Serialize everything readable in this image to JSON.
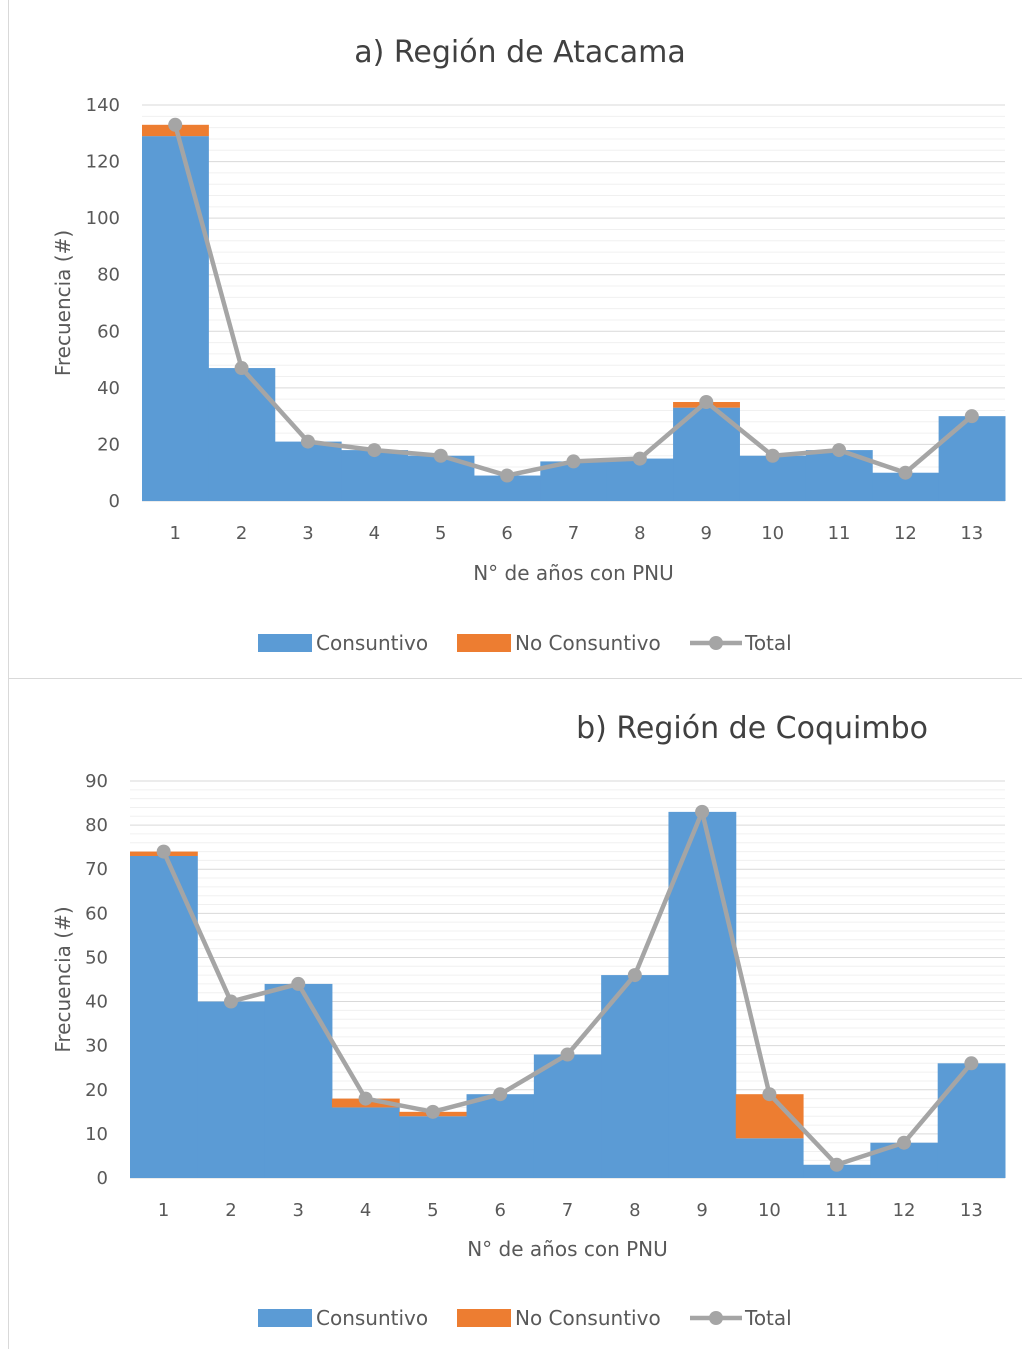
{
  "chart_data": [
    {
      "type": "bar",
      "stacked": true,
      "title": "a) Región de Atacama",
      "xlabel": "N° de años con PNU",
      "ylabel": "Frecuencia (#)",
      "ylim": [
        0,
        140
      ],
      "yticks": [
        0,
        20,
        40,
        60,
        80,
        100,
        120,
        140
      ],
      "categories": [
        "1",
        "2",
        "3",
        "4",
        "5",
        "6",
        "7",
        "8",
        "9",
        "10",
        "11",
        "12",
        "13"
      ],
      "series": [
        {
          "name": "Consuntivo",
          "color": "#5B9BD5",
          "values": [
            129,
            47,
            21,
            18,
            16,
            9,
            14,
            15,
            33,
            16,
            18,
            10,
            30
          ]
        },
        {
          "name": "No Consuntivo",
          "color": "#ED7D31",
          "values": [
            4,
            0,
            0,
            0,
            0,
            0,
            0,
            0,
            2,
            0,
            0,
            0,
            0
          ]
        },
        {
          "name": "Total",
          "type": "line",
          "color": "#A5A5A5",
          "values": [
            133,
            47,
            21,
            18,
            16,
            9,
            14,
            15,
            35,
            16,
            18,
            10,
            30
          ]
        }
      ],
      "grid": true,
      "legend": "bottom"
    },
    {
      "type": "bar",
      "stacked": true,
      "title": "b) Región de Coquimbo",
      "xlabel": "N° de años con PNU",
      "ylabel": "Frecuencia (#)",
      "ylim": [
        0,
        90
      ],
      "yticks": [
        0,
        10,
        20,
        30,
        40,
        50,
        60,
        70,
        80,
        90
      ],
      "categories": [
        "1",
        "2",
        "3",
        "4",
        "5",
        "6",
        "7",
        "8",
        "9",
        "10",
        "11",
        "12",
        "13"
      ],
      "series": [
        {
          "name": "Consuntivo",
          "color": "#5B9BD5",
          "values": [
            73,
            40,
            44,
            16,
            14,
            19,
            28,
            46,
            83,
            9,
            3,
            8,
            26
          ]
        },
        {
          "name": "No Consuntivo",
          "color": "#ED7D31",
          "values": [
            1,
            0,
            0,
            2,
            1,
            0,
            0,
            0,
            0,
            10,
            0,
            0,
            0
          ]
        },
        {
          "name": "Total",
          "type": "line",
          "color": "#A5A5A5",
          "values": [
            74,
            40,
            44,
            18,
            15,
            19,
            28,
            46,
            83,
            19,
            3,
            8,
            26
          ]
        }
      ],
      "grid": true,
      "legend": "bottom"
    }
  ]
}
